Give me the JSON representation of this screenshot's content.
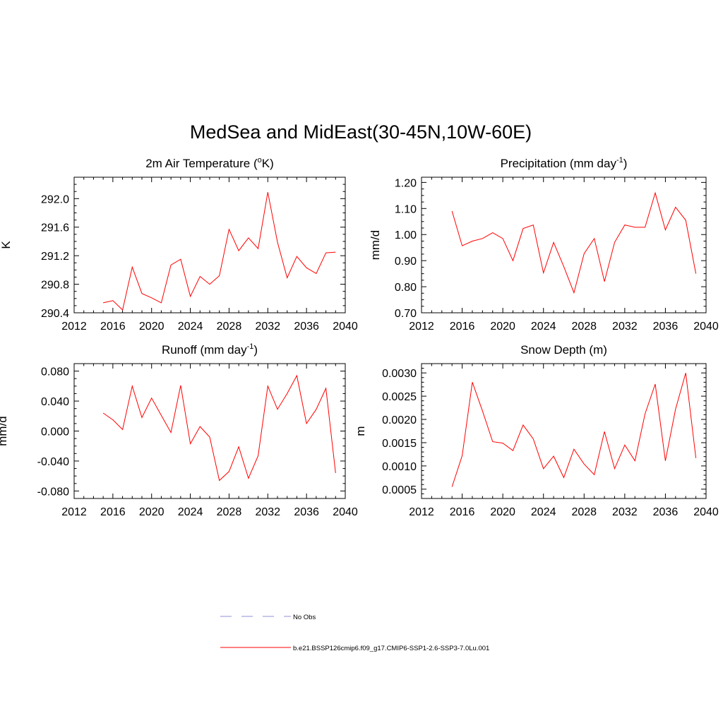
{
  "title": "MedSea and MidEast(30-45N,10W-60E)",
  "legend": [
    {
      "label": "No Obs",
      "style": "dashed",
      "color": "#a8a8e0"
    },
    {
      "label": "b.e21.BSSP126cmip6.f09_g17.CMIP6-SSP1-2.6-SSP3-7.0Lu.001",
      "style": "solid",
      "color": "#ff0000"
    }
  ],
  "chart_data": [
    {
      "type": "line",
      "title": "2m Air Temperature (",
      "title_sup": "o",
      "title_after": "K)",
      "ylabel": "K",
      "xlim": [
        2012,
        2040
      ],
      "ylim": [
        290.4,
        292.3
      ],
      "xticks": [
        2012,
        2016,
        2020,
        2024,
        2028,
        2032,
        2036,
        2040
      ],
      "yticks": [
        290.4,
        290.8,
        291.2,
        291.6,
        292.0
      ],
      "ytick_labels": [
        "290.4",
        "290.8",
        "291.2",
        "291.6",
        "292.0"
      ],
      "yminor": 0.1,
      "x": [
        2015,
        2016,
        2017,
        2018,
        2019,
        2020,
        2021,
        2022,
        2023,
        2024,
        2025,
        2026,
        2027,
        2028,
        2029,
        2030,
        2031,
        2032,
        2033,
        2034,
        2035,
        2036,
        2037,
        2038,
        2039
      ],
      "series": [
        {
          "color": "#ff0000",
          "values": [
            290.54,
            290.57,
            290.44,
            291.04,
            290.67,
            290.61,
            290.54,
            291.07,
            291.15,
            290.63,
            290.91,
            290.8,
            290.92,
            291.57,
            291.27,
            291.45,
            291.3,
            292.09,
            291.39,
            290.89,
            291.19,
            291.03,
            290.95,
            291.24,
            291.25
          ]
        }
      ]
    },
    {
      "type": "line",
      "title": "Precipitation (mm day",
      "title_sup": "-1",
      "title_after": ")",
      "ylabel": "mm/d",
      "xlim": [
        2012,
        2040
      ],
      "ylim": [
        0.7,
        1.22
      ],
      "xticks": [
        2012,
        2016,
        2020,
        2024,
        2028,
        2032,
        2036,
        2040
      ],
      "yticks": [
        0.7,
        0.8,
        0.9,
        1.0,
        1.1,
        1.2
      ],
      "ytick_labels": [
        "0.70",
        "0.80",
        "0.90",
        "1.00",
        "1.10",
        "1.20"
      ],
      "yminor": 0.025,
      "x": [
        2015,
        2016,
        2017,
        2018,
        2019,
        2020,
        2021,
        2022,
        2023,
        2024,
        2025,
        2026,
        2027,
        2028,
        2029,
        2030,
        2031,
        2032,
        2033,
        2034,
        2035,
        2036,
        2037,
        2038,
        2039
      ],
      "series": [
        {
          "color": "#ff0000",
          "values": [
            1.09,
            0.957,
            0.975,
            0.985,
            1.007,
            0.985,
            0.9,
            1.023,
            1.037,
            0.853,
            0.97,
            0.877,
            0.777,
            0.927,
            0.985,
            0.82,
            0.97,
            1.037,
            1.028,
            1.028,
            1.16,
            1.018,
            1.105,
            1.055,
            0.85
          ]
        }
      ]
    },
    {
      "type": "line",
      "title": "Runoff (mm day",
      "title_sup": "-1",
      "title_after": ")",
      "ylabel": "mm/d",
      "xlim": [
        2012,
        2040
      ],
      "ylim": [
        -0.09,
        0.09
      ],
      "xticks": [
        2012,
        2016,
        2020,
        2024,
        2028,
        2032,
        2036,
        2040
      ],
      "yticks": [
        -0.08,
        -0.04,
        0.0,
        0.04,
        0.08
      ],
      "ytick_labels": [
        "-0.080",
        "-0.040",
        "0.000",
        "0.040",
        "0.080"
      ],
      "yminor": 0.01,
      "x": [
        2015,
        2016,
        2017,
        2018,
        2019,
        2020,
        2021,
        2022,
        2023,
        2024,
        2025,
        2026,
        2027,
        2028,
        2029,
        2030,
        2031,
        2032,
        2033,
        2034,
        2035,
        2036,
        2037,
        2038,
        2039
      ],
      "series": [
        {
          "color": "#ff0000",
          "values": [
            0.024,
            0.015,
            0.002,
            0.06,
            0.018,
            0.044,
            0.021,
            -0.002,
            0.061,
            -0.017,
            0.006,
            -0.008,
            -0.066,
            -0.054,
            -0.021,
            -0.063,
            -0.033,
            0.06,
            0.029,
            0.05,
            0.074,
            0.01,
            0.029,
            0.057,
            -0.056
          ]
        }
      ]
    },
    {
      "type": "line",
      "title": "Snow Depth (m)",
      "title_sup": "",
      "title_after": "",
      "ylabel": "m",
      "xlim": [
        2012,
        2040
      ],
      "ylim": [
        0.0003,
        0.0032
      ],
      "xticks": [
        2012,
        2016,
        2020,
        2024,
        2028,
        2032,
        2036,
        2040
      ],
      "yticks": [
        0.0005,
        0.001,
        0.0015,
        0.002,
        0.0025,
        0.003
      ],
      "ytick_labels": [
        "0.0005",
        "0.0010",
        "0.0015",
        "0.0020",
        "0.0025",
        "0.0030"
      ],
      "yminor": 0.0001,
      "x": [
        2015,
        2016,
        2017,
        2018,
        2019,
        2020,
        2021,
        2022,
        2023,
        2024,
        2025,
        2026,
        2027,
        2028,
        2029,
        2030,
        2031,
        2032,
        2033,
        2034,
        2035,
        2036,
        2037,
        2038,
        2039
      ],
      "series": [
        {
          "color": "#ff0000",
          "values": [
            0.00055,
            0.00122,
            0.0028,
            0.00218,
            0.00152,
            0.00149,
            0.00133,
            0.00188,
            0.00158,
            0.00094,
            0.00121,
            0.00075,
            0.00136,
            0.00104,
            0.00081,
            0.00174,
            0.00094,
            0.00145,
            0.00111,
            0.00212,
            0.00276,
            0.00111,
            0.00222,
            0.003,
            0.00117
          ]
        }
      ]
    }
  ]
}
